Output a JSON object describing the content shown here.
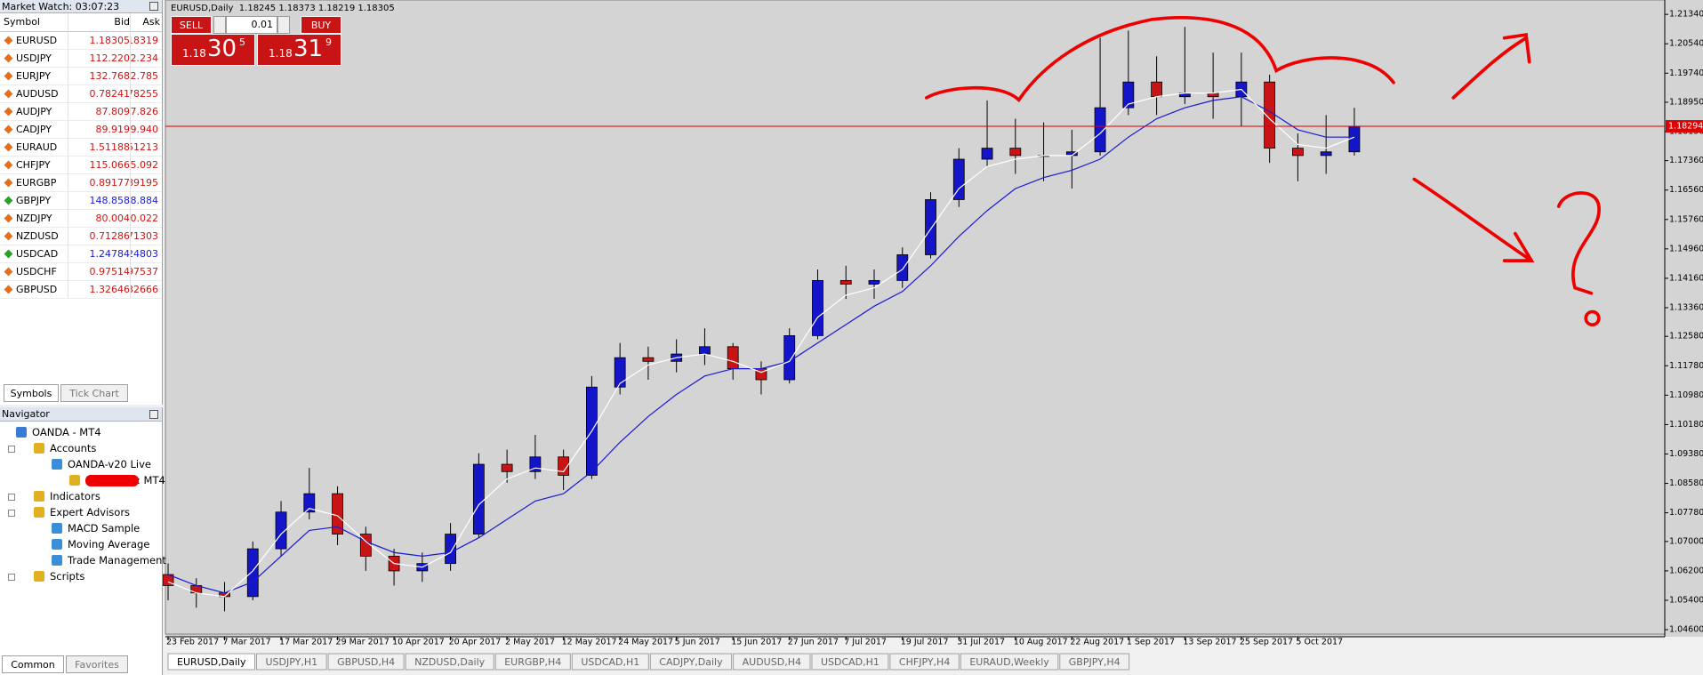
{
  "market_watch": {
    "title": "Market Watch: 03:07:23",
    "columns": [
      "Symbol",
      "Bid",
      "Ask"
    ],
    "rows": [
      {
        "symbol": "EURUSD",
        "bid": "1.18305",
        "ask": "1.18319",
        "direction": "down"
      },
      {
        "symbol": "USDJPY",
        "bid": "112.220",
        "ask": "112.234",
        "direction": "down"
      },
      {
        "symbol": "EURJPY",
        "bid": "132.768",
        "ask": "132.785",
        "direction": "down"
      },
      {
        "symbol": "AUDUSD",
        "bid": "0.78241",
        "ask": "0.78255",
        "direction": "down"
      },
      {
        "symbol": "AUDJPY",
        "bid": "87.809",
        "ask": "87.826",
        "direction": "down"
      },
      {
        "symbol": "CADJPY",
        "bid": "89.919",
        "ask": "89.940",
        "direction": "down"
      },
      {
        "symbol": "EURAUD",
        "bid": "1.51188",
        "ask": "1.51213",
        "direction": "down"
      },
      {
        "symbol": "CHFJPY",
        "bid": "115.066",
        "ask": "115.092",
        "direction": "down"
      },
      {
        "symbol": "EURGBP",
        "bid": "0.89177",
        "ask": "0.89195",
        "direction": "down"
      },
      {
        "symbol": "GBPJPY",
        "bid": "148.858",
        "ask": "148.884",
        "direction": "up"
      },
      {
        "symbol": "NZDJPY",
        "bid": "80.004",
        "ask": "80.022",
        "direction": "down"
      },
      {
        "symbol": "NZDUSD",
        "bid": "0.71286",
        "ask": "0.71303",
        "direction": "down"
      },
      {
        "symbol": "USDCAD",
        "bid": "1.24784",
        "ask": "1.24803",
        "direction": "up"
      },
      {
        "symbol": "USDCHF",
        "bid": "0.97514",
        "ask": "0.97537",
        "direction": "down"
      },
      {
        "symbol": "GBPUSD",
        "bid": "1.32646",
        "ask": "1.32666",
        "direction": "down"
      }
    ],
    "tabs": [
      "Symbols",
      "Tick Chart"
    ]
  },
  "navigator": {
    "title": "Navigator",
    "items": [
      {
        "label": "OANDA - MT4",
        "level": 0
      },
      {
        "label": "Accounts",
        "level": 1
      },
      {
        "label": "OANDA-v20 Live",
        "level": 2
      },
      {
        "label": ": MT4",
        "level": 3
      },
      {
        "label": "Indicators",
        "level": 1
      },
      {
        "label": "Expert Advisors",
        "level": 1
      },
      {
        "label": "MACD Sample",
        "level": 2
      },
      {
        "label": "Moving Average",
        "level": 2
      },
      {
        "label": "Trade Management F",
        "level": 2
      },
      {
        "label": "Scripts",
        "level": 1
      }
    ],
    "tabs": [
      "Common",
      "Favorites"
    ]
  },
  "chart": {
    "type": "candlestick",
    "header": "EURUSD,Daily  1.18245 1.18373 1.18219 1.18305",
    "trade_panel": {
      "sell": "SELL",
      "lot": "0.01",
      "buy": "BUY",
      "sell_price": [
        "1.18",
        "30",
        "5"
      ],
      "buy_price": [
        "1.18",
        "31",
        "9"
      ]
    },
    "categories": [
      "23 Feb 2017",
      null,
      "7 Mar 2017",
      null,
      "17 Mar 2017",
      null,
      "29 Mar 2017",
      null,
      "10 Apr 2017",
      null,
      "20 Apr 2017",
      null,
      "2 May 2017",
      null,
      "12 May 2017",
      null,
      "24 May 2017",
      null,
      "5 Jun 2017",
      null,
      "15 Jun 2017",
      null,
      "27 Jun 2017",
      null,
      "7 Jul 2017",
      null,
      "19 Jul 2017",
      null,
      "31 Jul 2017",
      null,
      "10 Aug 2017",
      null,
      "22 Aug 2017",
      null,
      "1 Sep 2017",
      null,
      "13 Sep 2017",
      null,
      "25 Sep 2017",
      null,
      "5 Oct 2017",
      null,
      null
    ],
    "candles": [
      [
        1.061,
        1.064,
        1.054,
        1.058
      ],
      [
        1.058,
        1.06,
        1.052,
        1.056
      ],
      [
        1.056,
        1.059,
        1.051,
        1.055
      ],
      [
        1.055,
        1.07,
        1.054,
        1.068
      ],
      [
        1.068,
        1.081,
        1.066,
        1.078
      ],
      [
        1.078,
        1.09,
        1.076,
        1.083
      ],
      [
        1.083,
        1.085,
        1.069,
        1.072
      ],
      [
        1.072,
        1.074,
        1.062,
        1.066
      ],
      [
        1.066,
        1.068,
        1.058,
        1.062
      ],
      [
        1.062,
        1.067,
        1.059,
        1.064
      ],
      [
        1.064,
        1.075,
        1.062,
        1.072
      ],
      [
        1.072,
        1.094,
        1.071,
        1.091
      ],
      [
        1.091,
        1.095,
        1.086,
        1.089
      ],
      [
        1.089,
        1.099,
        1.087,
        1.093
      ],
      [
        1.093,
        1.095,
        1.084,
        1.088
      ],
      [
        1.088,
        1.115,
        1.087,
        1.112
      ],
      [
        1.112,
        1.124,
        1.11,
        1.12
      ],
      [
        1.12,
        1.123,
        1.114,
        1.119
      ],
      [
        1.119,
        1.125,
        1.116,
        1.121
      ],
      [
        1.121,
        1.128,
        1.118,
        1.123
      ],
      [
        1.123,
        1.124,
        1.114,
        1.117
      ],
      [
        1.117,
        1.119,
        1.11,
        1.114
      ],
      [
        1.114,
        1.128,
        1.113,
        1.126
      ],
      [
        1.126,
        1.144,
        1.125,
        1.141
      ],
      [
        1.141,
        1.145,
        1.136,
        1.14
      ],
      [
        1.14,
        1.144,
        1.136,
        1.141
      ],
      [
        1.141,
        1.15,
        1.139,
        1.148
      ],
      [
        1.148,
        1.165,
        1.147,
        1.163
      ],
      [
        1.163,
        1.177,
        1.161,
        1.174
      ],
      [
        1.174,
        1.19,
        1.172,
        1.177
      ],
      [
        1.177,
        1.185,
        1.17,
        1.175
      ],
      [
        1.175,
        1.184,
        1.168,
        1.175
      ],
      [
        1.175,
        1.182,
        1.166,
        1.176
      ],
      [
        1.176,
        1.207,
        1.175,
        1.188
      ],
      [
        1.188,
        1.209,
        1.186,
        1.195
      ],
      [
        1.195,
        1.202,
        1.186,
        1.191
      ],
      [
        1.191,
        1.21,
        1.189,
        1.192
      ],
      [
        1.192,
        1.203,
        1.185,
        1.191
      ],
      [
        1.191,
        1.203,
        1.183,
        1.195
      ],
      [
        1.195,
        1.197,
        1.173,
        1.177
      ],
      [
        1.177,
        1.181,
        1.168,
        1.175
      ],
      [
        1.175,
        1.186,
        1.17,
        1.176
      ],
      [
        1.176,
        1.188,
        1.175,
        1.1829
      ]
    ],
    "up_color": "#1414c8",
    "down_color": "#c81414",
    "series": [
      {
        "color": "#1a1ad2",
        "values": [
          1.061,
          1.058,
          1.056,
          1.059,
          1.066,
          1.073,
          1.074,
          1.07,
          1.067,
          1.066,
          1.067,
          1.071,
          1.076,
          1.081,
          1.083,
          1.089,
          1.097,
          1.104,
          1.11,
          1.115,
          1.117,
          1.117,
          1.119,
          1.124,
          1.129,
          1.134,
          1.138,
          1.145,
          1.153,
          1.16,
          1.166,
          1.169,
          1.171,
          1.174,
          1.18,
          1.185,
          1.188,
          1.19,
          1.191,
          1.187,
          1.182,
          1.18,
          1.18
        ]
      },
      {
        "color": "#ffffff",
        "values": [
          1.059,
          1.056,
          1.055,
          1.062,
          1.072,
          1.079,
          1.077,
          1.07,
          1.064,
          1.063,
          1.067,
          1.08,
          1.087,
          1.09,
          1.089,
          1.1,
          1.113,
          1.118,
          1.12,
          1.121,
          1.119,
          1.116,
          1.119,
          1.131,
          1.137,
          1.139,
          1.144,
          1.155,
          1.166,
          1.172,
          1.174,
          1.175,
          1.175,
          1.181,
          1.189,
          1.191,
          1.192,
          1.192,
          1.193,
          1.185,
          1.178,
          1.177,
          1.18
        ]
      }
    ],
    "ylim": [
      1.0448,
      1.2161
    ],
    "yticks": [
      {
        "value": 1.2134,
        "label": "1.21340"
      },
      {
        "value": 1.2054,
        "label": "1.20540"
      },
      {
        "value": 1.1974,
        "label": "1.19740"
      },
      {
        "value": 1.1895,
        "label": "1.18950"
      },
      {
        "value": 1.1815,
        "label": "1.18150"
      },
      {
        "value": 1.1736,
        "label": "1.17360"
      },
      {
        "value": 1.1656,
        "label": "1.16560"
      },
      {
        "value": 1.1576,
        "label": "1.15760"
      },
      {
        "value": 1.1496,
        "label": "1.14960"
      },
      {
        "value": 1.1416,
        "label": "1.14160"
      },
      {
        "value": 1.1336,
        "label": "1.13360"
      },
      {
        "value": 1.1258,
        "label": "1.12580"
      },
      {
        "value": 1.1178,
        "label": "1.11780"
      },
      {
        "value": 1.1098,
        "label": "1.10980"
      },
      {
        "value": 1.1018,
        "label": "1.10180"
      },
      {
        "value": 1.0938,
        "label": "1.09380"
      },
      {
        "value": 1.0858,
        "label": "1.08580"
      },
      {
        "value": 1.0778,
        "label": "1.07780"
      },
      {
        "value": 1.07,
        "label": "1.07000"
      },
      {
        "value": 1.062,
        "label": "1.06200"
      },
      {
        "value": 1.054,
        "label": "1.05400"
      },
      {
        "value": 1.046,
        "label": "1.04600"
      }
    ],
    "price_line": {
      "value": 1.18294,
      "label": "1.18294",
      "color": "#e00000"
    }
  },
  "tabs": [
    "EURUSD,Daily",
    "USDJPY,H1",
    "GBPUSD,H4",
    "NZDUSD,Daily",
    "EURGBP,H4",
    "USDCAD,H1",
    "CADJPY,Daily",
    "AUDUSD,H4",
    "USDCAD,H1",
    "CHFJPY,H4",
    "EURAUD,Weekly",
    "GBPJPY,H4"
  ]
}
